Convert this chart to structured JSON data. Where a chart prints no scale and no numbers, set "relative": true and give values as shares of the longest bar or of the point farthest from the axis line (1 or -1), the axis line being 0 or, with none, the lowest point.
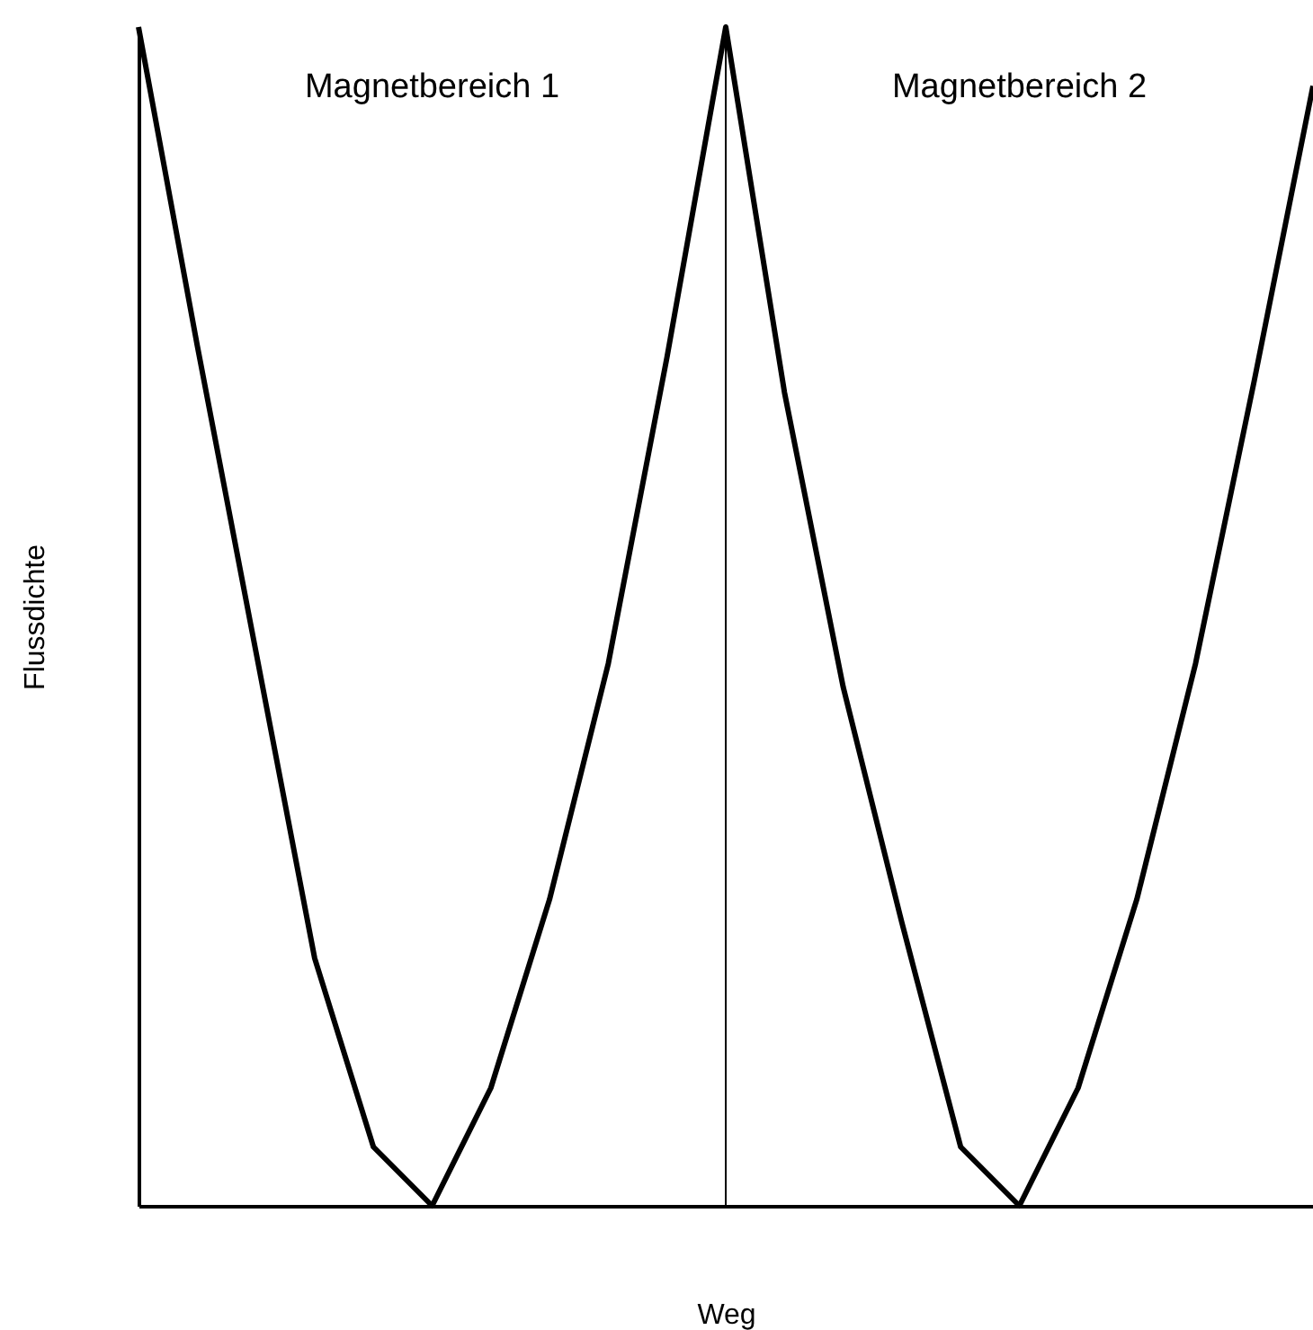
{
  "chart_data": {
    "type": "line",
    "relative": true,
    "xlabel": "Weg",
    "ylabel": "Flussdichte",
    "categories": [
      null,
      null,
      null,
      null,
      null,
      null,
      null,
      null,
      null,
      null,
      null,
      null,
      null,
      null,
      null,
      null,
      null,
      null,
      null,
      null,
      null
    ],
    "series": [
      {
        "color": "#000000",
        "values": [
          1.0,
          0.73,
          0.47,
          0.21,
          0.05,
          0,
          0.1,
          0.26,
          0.46,
          0.72,
          1.0,
          0.69,
          0.44,
          0.24,
          0.05,
          0,
          0.1,
          0.26,
          0.46,
          0.7,
          0.95
        ]
      }
    ],
    "annotations": [
      "Magnetbereich 1",
      "Magnetbereich 2"
    ],
    "marker": "none",
    "line_style": "solid"
  }
}
